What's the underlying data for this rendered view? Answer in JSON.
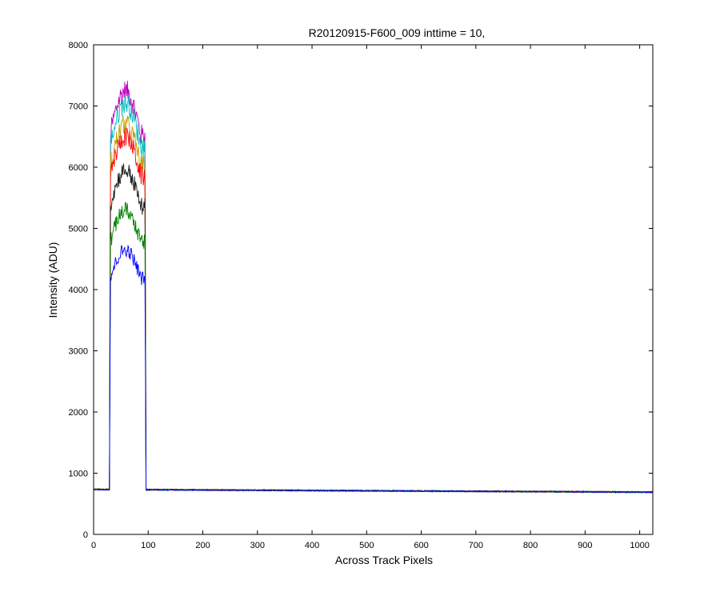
{
  "chart_data": {
    "type": "line",
    "title": "R20120915-F600_009 inttime = 10,",
    "xlabel": "Across Track Pixels",
    "ylabel": "Intensity (ADU)",
    "xlim": [
      0,
      1024
    ],
    "ylim": [
      0,
      8000
    ],
    "xticks": [
      0,
      100,
      200,
      300,
      400,
      500,
      600,
      700,
      800,
      900,
      1000
    ],
    "yticks": [
      0,
      1000,
      2000,
      3000,
      4000,
      5000,
      6000,
      7000,
      8000
    ],
    "grid": false,
    "legend": "none",
    "signal_range_pixels": [
      30,
      95
    ],
    "background_level": {
      "at_start": 735,
      "at_end": 690
    },
    "series": [
      {
        "color": "#0000ff",
        "peak": 4650
      },
      {
        "color": "#008000",
        "peak": 5300
      },
      {
        "color": "#202020",
        "peak": 5950
      },
      {
        "color": "#ff0000",
        "peak": 6500
      },
      {
        "color": "#c0a000",
        "peak": 6700
      },
      {
        "color": "#00bfbf",
        "peak": 7050
      },
      {
        "color": "#bf00bf",
        "peak": 7250
      }
    ]
  }
}
